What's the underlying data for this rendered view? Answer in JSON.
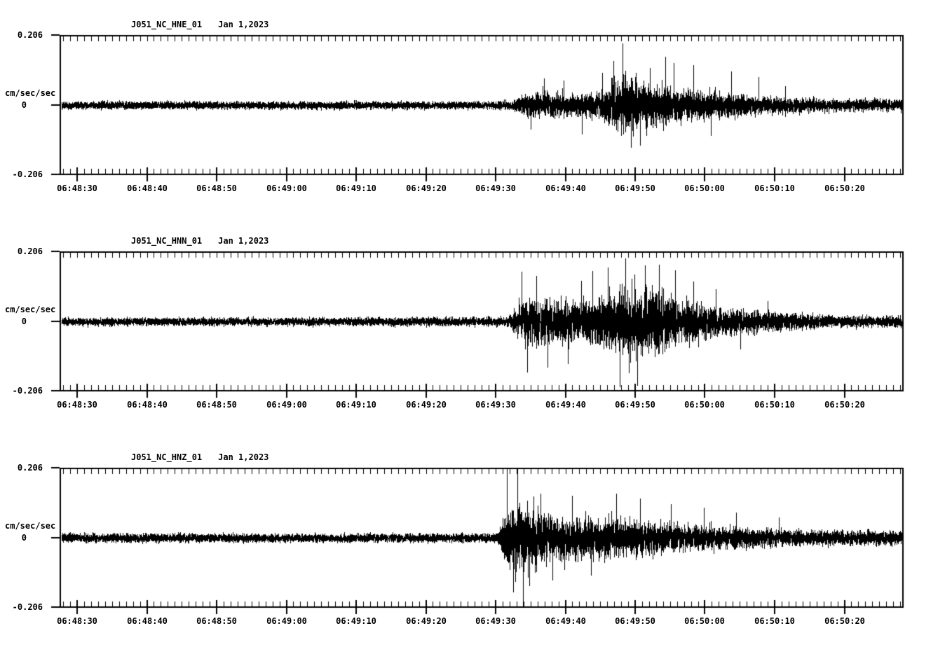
{
  "page": {
    "background_color": "#ffffff",
    "foreground_color": "#000000"
  },
  "y_axis": {
    "max_label": "0.206",
    "zero_label": "0",
    "min_label": "-0.206",
    "unit": "cm/sec/sec"
  },
  "x_axis": {
    "tick_labels": [
      "06:48:30",
      "06:48:40",
      "06:48:50",
      "06:49:00",
      "06:49:10",
      "06:49:20",
      "06:49:30",
      "06:49:40",
      "06:49:50",
      "06:50:00",
      "06:50:10",
      "06:50:20"
    ],
    "minor_tick_interval_s": 1,
    "major_tick_interval_s": 10
  },
  "panels": [
    {
      "title": "J051_NC_HNE_01",
      "date": "Jan 1,2023"
    },
    {
      "title": "J051_NC_HNN_01",
      "date": "Jan 1,2023"
    },
    {
      "title": "J051_NC_HNZ_01",
      "date": "Jan 1,2023"
    }
  ],
  "chart_data": [
    {
      "type": "line",
      "name": "J051_NC_HNE_01",
      "date": "Jan 1,2023",
      "ylabel": "cm/sec/sec",
      "ylim": [
        -0.206,
        0.206
      ],
      "x_start": "06:48:27.5",
      "x_end": "06:50:28",
      "x_tick_labels": [
        "06:48:30",
        "06:48:40",
        "06:48:50",
        "06:49:00",
        "06:49:10",
        "06:49:20",
        "06:49:30",
        "06:49:40",
        "06:49:50",
        "06:50:00",
        "06:50:10",
        "06:50:20"
      ],
      "seed": 101,
      "envelope": [
        [
          0,
          0.0115
        ],
        [
          55,
          0.011
        ],
        [
          63,
          0.012
        ],
        [
          65,
          0.014
        ],
        [
          66,
          0.028
        ],
        [
          68,
          0.038
        ],
        [
          71,
          0.042
        ],
        [
          74,
          0.032
        ],
        [
          76,
          0.038
        ],
        [
          78,
          0.05
        ],
        [
          80,
          0.08
        ],
        [
          82,
          0.088
        ],
        [
          83,
          0.07
        ],
        [
          85,
          0.056
        ],
        [
          87,
          0.062
        ],
        [
          89,
          0.05
        ],
        [
          92,
          0.042
        ],
        [
          95,
          0.036
        ],
        [
          98,
          0.03
        ],
        [
          101,
          0.026
        ],
        [
          105,
          0.022
        ],
        [
          110,
          0.019
        ],
        [
          121,
          0.018
        ]
      ],
      "spikes": [
        [
          67.5,
          -0.07
        ],
        [
          69.4,
          0.078
        ],
        [
          72.3,
          0.072
        ],
        [
          74.9,
          -0.085
        ],
        [
          77.8,
          0.096
        ],
        [
          79.4,
          0.13
        ],
        [
          80.7,
          0.182
        ],
        [
          81.9,
          -0.125
        ],
        [
          83.2,
          -0.118
        ],
        [
          84.6,
          0.11
        ],
        [
          86.8,
          0.142
        ],
        [
          88.0,
          0.125
        ],
        [
          90.9,
          0.118
        ],
        [
          93.4,
          -0.09
        ],
        [
          96.3,
          0.1
        ],
        [
          100.2,
          0.082
        ],
        [
          104.0,
          0.055
        ]
      ]
    },
    {
      "type": "line",
      "name": "J051_NC_HNN_01",
      "date": "Jan 1,2023",
      "ylabel": "cm/sec/sec",
      "ylim": [
        -0.206,
        0.206
      ],
      "x_start": "06:48:27.5",
      "x_end": "06:50:28",
      "x_tick_labels": [
        "06:48:30",
        "06:48:40",
        "06:48:50",
        "06:49:00",
        "06:49:10",
        "06:49:20",
        "06:49:30",
        "06:49:40",
        "06:49:50",
        "06:50:00",
        "06:50:10",
        "06:50:20"
      ],
      "seed": 202,
      "envelope": [
        [
          0,
          0.0115
        ],
        [
          40,
          0.012
        ],
        [
          55,
          0.013
        ],
        [
          64,
          0.013
        ],
        [
          65,
          0.03
        ],
        [
          65.8,
          0.055
        ],
        [
          66.8,
          0.075
        ],
        [
          68,
          0.082
        ],
        [
          70,
          0.062
        ],
        [
          72,
          0.072
        ],
        [
          74,
          0.06
        ],
        [
          76,
          0.068
        ],
        [
          78,
          0.082
        ],
        [
          80,
          0.1
        ],
        [
          82,
          0.108
        ],
        [
          84,
          0.095
        ],
        [
          86,
          0.092
        ],
        [
          88,
          0.075
        ],
        [
          90,
          0.06
        ],
        [
          93,
          0.05
        ],
        [
          96,
          0.04
        ],
        [
          100,
          0.032
        ],
        [
          104,
          0.026
        ],
        [
          109,
          0.021
        ],
        [
          114,
          0.017
        ],
        [
          121,
          0.015
        ]
      ],
      "spikes": [
        [
          66.2,
          0.148
        ],
        [
          67.0,
          -0.15
        ],
        [
          68.3,
          0.135
        ],
        [
          69.9,
          -0.135
        ],
        [
          72.9,
          -0.125
        ],
        [
          74.8,
          0.12
        ],
        [
          76.4,
          0.15
        ],
        [
          78.6,
          0.16
        ],
        [
          80.3,
          -0.192
        ],
        [
          81.1,
          0.186
        ],
        [
          82.8,
          -0.188
        ],
        [
          83.9,
          0.165
        ],
        [
          85.9,
          0.168
        ],
        [
          88.2,
          0.152
        ],
        [
          90.9,
          0.118
        ],
        [
          94.1,
          0.095
        ],
        [
          97.6,
          -0.08
        ],
        [
          101.5,
          0.06
        ]
      ]
    },
    {
      "type": "line",
      "name": "J051_NC_HNZ_01",
      "date": "Jan 1,2023",
      "ylabel": "cm/sec/sec",
      "ylim": [
        -0.206,
        0.206
      ],
      "x_start": "06:48:27.5",
      "x_end": "06:50:28",
      "x_tick_labels": [
        "06:48:30",
        "06:48:40",
        "06:48:50",
        "06:49:00",
        "06:49:10",
        "06:49:20",
        "06:49:30",
        "06:49:40",
        "06:49:50",
        "06:50:00",
        "06:50:10",
        "06:50:20"
      ],
      "seed": 303,
      "envelope": [
        [
          0,
          0.013
        ],
        [
          60,
          0.013
        ],
        [
          62.5,
          0.014
        ],
        [
          63.2,
          0.03
        ],
        [
          63.8,
          0.085
        ],
        [
          64.8,
          0.108
        ],
        [
          66,
          0.112
        ],
        [
          67.5,
          0.095
        ],
        [
          69,
          0.082
        ],
        [
          71,
          0.07
        ],
        [
          73,
          0.063
        ],
        [
          75,
          0.06
        ],
        [
          78,
          0.061
        ],
        [
          81,
          0.054
        ],
        [
          84,
          0.049
        ],
        [
          87,
          0.045
        ],
        [
          90,
          0.041
        ],
        [
          94,
          0.036
        ],
        [
          98,
          0.03
        ],
        [
          102,
          0.027
        ],
        [
          107,
          0.024
        ],
        [
          113,
          0.022
        ],
        [
          121,
          0.021
        ]
      ],
      "spikes": [
        [
          64.1,
          0.21
        ],
        [
          65.0,
          -0.16
        ],
        [
          65.6,
          0.24
        ],
        [
          66.4,
          -0.26
        ],
        [
          67.3,
          -0.14
        ],
        [
          68.9,
          0.13
        ],
        [
          70.7,
          -0.125
        ],
        [
          73.5,
          0.125
        ],
        [
          76.2,
          -0.11
        ],
        [
          79.8,
          0.13
        ],
        [
          83.2,
          0.115
        ],
        [
          87.6,
          0.1
        ],
        [
          92.4,
          0.09
        ],
        [
          97.0,
          0.075
        ],
        [
          103.1,
          0.06
        ]
      ]
    }
  ]
}
